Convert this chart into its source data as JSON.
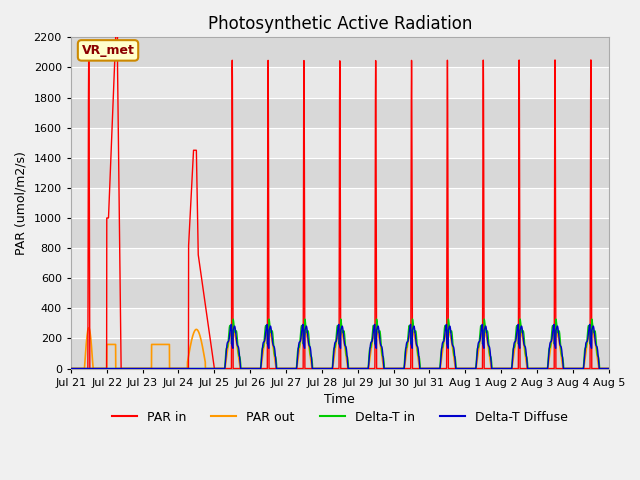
{
  "title": "Photosynthetic Active Radiation",
  "ylabel": "PAR (umol/m2/s)",
  "xlabel": "Time",
  "ylim": [
    0,
    2200
  ],
  "plot_bg_color": "#e8e8e8",
  "fig_bg_color": "#f0f0f0",
  "legend_entries": [
    "PAR in",
    "PAR out",
    "Delta-T in",
    "Delta-T Diffuse"
  ],
  "legend_colors": [
    "#ff0000",
    "#ff9900",
    "#00cc00",
    "#0000cc"
  ],
  "annotation_text": "VR_met",
  "annotation_box_color": "#ffffcc",
  "annotation_border_color": "#cc8800",
  "x_tick_labels": [
    "Jul 21",
    "Jul 22",
    "Jul 23",
    "Jul 24",
    "Jul 25",
    "Jul 26",
    "Jul 27",
    "Jul 28",
    "Jul 29",
    "Jul 30",
    "Jul 31",
    "Aug 1",
    "Aug 2",
    "Aug 3",
    "Aug 4",
    "Aug 5"
  ],
  "grid_color": "#ffffff",
  "title_fontsize": 12,
  "axis_label_fontsize": 9,
  "tick_fontsize": 8
}
